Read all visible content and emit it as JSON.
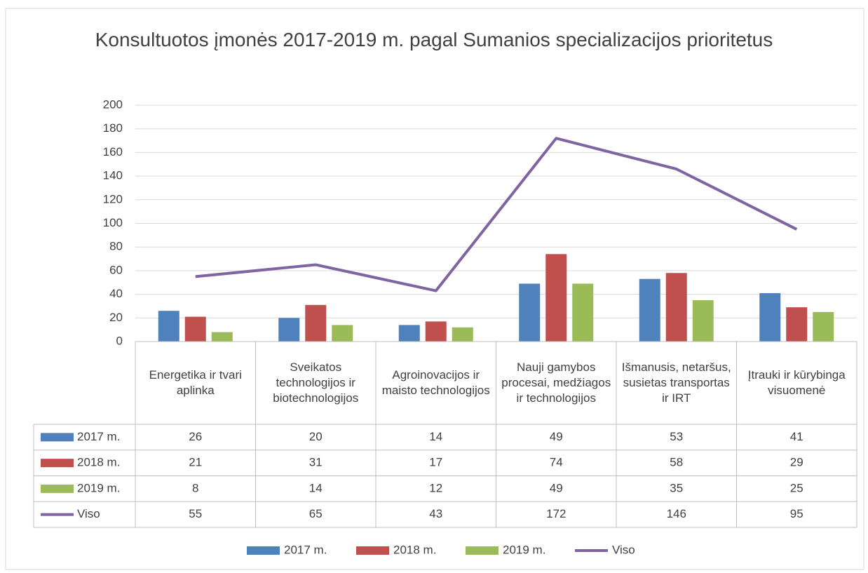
{
  "chart_data": {
    "type": "bar",
    "title": "Konsultuotos įmonės 2017-2019 m. pagal Sumanios specializacijos prioritetus",
    "categories": [
      "Energetika ir tvari aplinka",
      "Sveikatos technologijos ir biotechnologijos",
      "Agroinovacijos ir maisto technologijos",
      "Nauji gamybos procesai, medžiagos ir technologijos",
      "Išmanusis, netaršus, susietas transportas ir IRT",
      "Įtrauki ir kūrybinga visuomenė"
    ],
    "series": [
      {
        "name": "2017 m.",
        "color": "#4f81bd",
        "values": [
          26,
          20,
          14,
          49,
          53,
          41
        ]
      },
      {
        "name": "2018 m.",
        "color": "#c0504d",
        "values": [
          21,
          31,
          17,
          74,
          58,
          29
        ]
      },
      {
        "name": "2019 m.",
        "color": "#9bbb59",
        "values": [
          8,
          14,
          12,
          49,
          35,
          25
        ]
      },
      {
        "name": "Viso",
        "color": "#8064a2",
        "type": "line",
        "values": [
          55,
          65,
          43,
          172,
          146,
          95
        ]
      }
    ],
    "ylim": [
      0,
      200
    ],
    "yticks": [
      0,
      20,
      40,
      60,
      80,
      100,
      120,
      140,
      160,
      180,
      200
    ],
    "grid": true,
    "data_table": true,
    "legend": "bottom"
  }
}
